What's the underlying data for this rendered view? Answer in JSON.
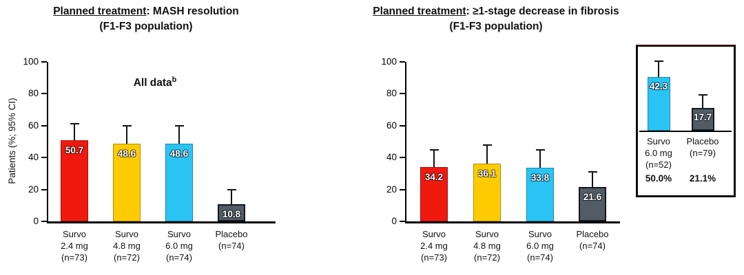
{
  "colors": {
    "survo_24": "#f0190e",
    "survo_48": "#fecb00",
    "survo_60": "#29c4f3",
    "placebo": "#515c66",
    "axis": "#000000",
    "inset_border": "#2e0808"
  },
  "chart_data": [
    {
      "id": "mash-resolution",
      "type": "bar",
      "title_prefix": "Planned treatment",
      "title_suffix": ": MASH resolution",
      "title_line2": "(F1-F3 population)",
      "ylabel": "Patients (%; 95% CI)",
      "annotation": {
        "text": "All data",
        "sup": "b"
      },
      "ylim": [
        0,
        100
      ],
      "yticks": [
        0,
        20,
        40,
        60,
        80,
        100
      ],
      "grid": false,
      "categories": [
        [
          "Survo",
          "2.4 mg",
          "(n=73)"
        ],
        [
          "Survo",
          "4.8 mg",
          "(n=72)"
        ],
        [
          "Survo",
          "6.0 mg",
          "(n=74)"
        ],
        [
          "Placebo",
          "(n=74)"
        ]
      ],
      "values": [
        50.7,
        48.6,
        48.6,
        10.8
      ],
      "ci_upper": [
        61,
        60,
        60,
        20
      ],
      "colors": [
        "#f0190e",
        "#fecb00",
        "#29c4f3",
        "#515c66"
      ]
    },
    {
      "id": "fibrosis-decrease",
      "type": "bar",
      "title_prefix": "Planned treatment",
      "title_suffix": ": ≥1-stage decrease in fibrosis",
      "title_line2": "(F1-F3 population)",
      "ylabel": "",
      "annotation": null,
      "ylim": [
        0,
        100
      ],
      "yticks": [
        0,
        20,
        40,
        60,
        80,
        100
      ],
      "grid": false,
      "categories": [
        [
          "Survo",
          "2.4 mg",
          "(n=73)"
        ],
        [
          "Survo",
          "4.8 mg",
          "(n=72)"
        ],
        [
          "Survo",
          "6.0 mg",
          "(n=74)"
        ],
        [
          "Placebo",
          "(n=74)"
        ]
      ],
      "values": [
        34.2,
        36.1,
        33.8,
        21.6
      ],
      "ci_upper": [
        45,
        48,
        45,
        31
      ],
      "colors": [
        "#f0190e",
        "#fecb00",
        "#29c4f3",
        "#515c66"
      ]
    },
    {
      "id": "inset-completers",
      "type": "bar",
      "ylim": [
        0,
        66
      ],
      "categories": [
        [
          "Survo",
          "6.0 mg",
          "(n=52)"
        ],
        [
          "Placebo",
          "(n=79)"
        ]
      ],
      "values": [
        42.3,
        17.7
      ],
      "ci_upper": [
        55,
        28
      ],
      "colors": [
        "#29c4f3",
        "#515c66"
      ],
      "footer_values": [
        "50.0%",
        "21.1%"
      ]
    }
  ]
}
